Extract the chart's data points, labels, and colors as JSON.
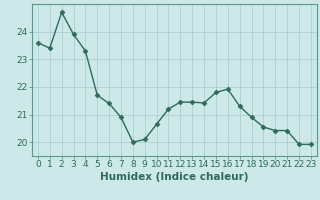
{
  "x": [
    0,
    1,
    2,
    3,
    4,
    5,
    6,
    7,
    8,
    9,
    10,
    11,
    12,
    13,
    14,
    15,
    16,
    17,
    18,
    19,
    20,
    21,
    22,
    23
  ],
  "y": [
    23.6,
    23.4,
    24.7,
    23.9,
    23.3,
    21.7,
    21.4,
    20.9,
    20.0,
    20.1,
    20.65,
    21.2,
    21.45,
    21.45,
    21.42,
    21.8,
    21.92,
    21.3,
    20.9,
    20.55,
    20.42,
    20.42,
    19.92,
    19.92
  ],
  "line_color": "#2e6b5e",
  "marker": "D",
  "marker_size": 2.5,
  "linewidth": 1.0,
  "xlabel": "Humidex (Indice chaleur)",
  "xlim": [
    -0.5,
    23.5
  ],
  "ylim": [
    19.5,
    25.0
  ],
  "yticks": [
    20,
    21,
    22,
    23,
    24
  ],
  "xticks": [
    0,
    1,
    2,
    3,
    4,
    5,
    6,
    7,
    8,
    9,
    10,
    11,
    12,
    13,
    14,
    15,
    16,
    17,
    18,
    19,
    20,
    21,
    22,
    23
  ],
  "bg_color": "#cce8e8",
  "grid_color": "#aed0d0",
  "tick_color": "#2e6b5e",
  "spine_color": "#5a9a8a",
  "xlabel_fontsize": 7.5,
  "tick_fontsize": 6.5
}
